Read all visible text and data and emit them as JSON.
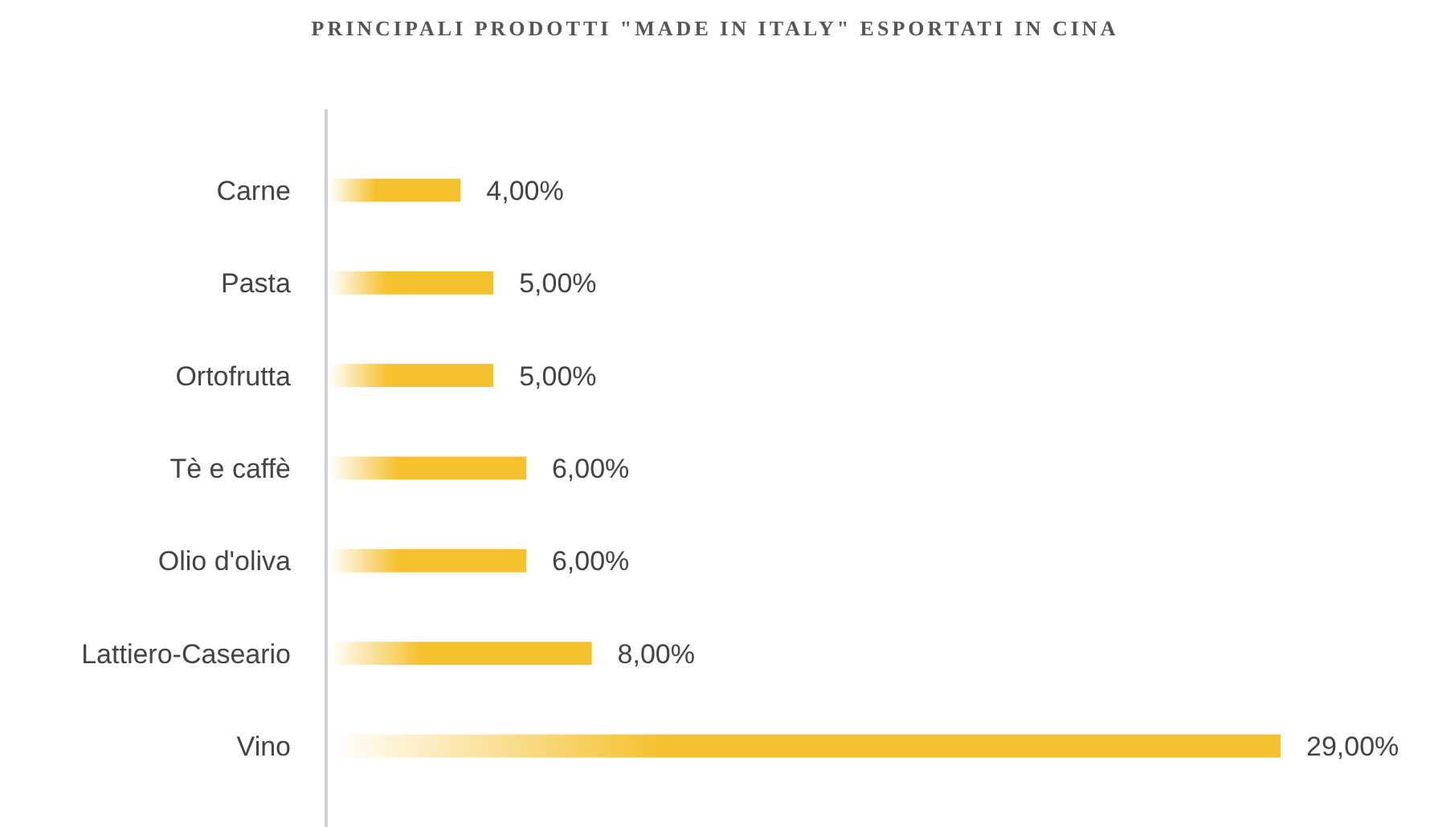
{
  "chart_data": {
    "type": "bar",
    "orientation": "horizontal",
    "title": "PRINCIPALI PRODOTTI \"MADE IN ITALY\" ESPORTATI IN CINA",
    "categories": [
      "Carne",
      "Pasta",
      "Ortofrutta",
      "Tè e caffè",
      "Olio d'oliva",
      "Lattiero-Caseario",
      "Vino"
    ],
    "values": [
      4,
      5,
      5,
      6,
      6,
      8,
      29
    ],
    "value_labels": [
      "4,00%",
      "5,00%",
      "5,00%",
      "6,00%",
      "6,00%",
      "8,00%",
      "29,00%"
    ],
    "color": "#f5c12e"
  }
}
